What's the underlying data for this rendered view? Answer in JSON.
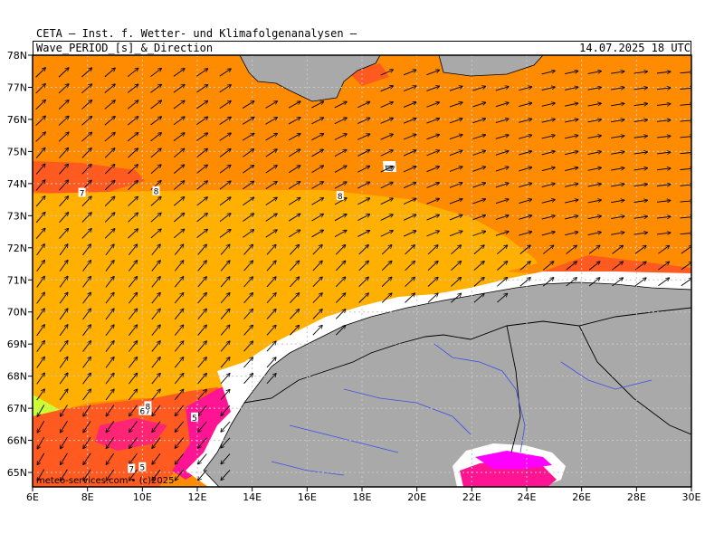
{
  "header": {
    "title": "CETA — Inst. f. Wetter- und Klimafolgenanalysen —",
    "product": "Wave_PERIOD_[s]_&_Direction",
    "valid_time": "14.07.2025 18 UTC"
  },
  "axes": {
    "lat_labels": [
      "78N",
      "77N",
      "76N",
      "75N",
      "74N",
      "73N",
      "72N",
      "71N",
      "70N",
      "69N",
      "68N",
      "67N",
      "66N",
      "65N"
    ],
    "lon_labels": [
      "6E",
      "8E",
      "10E",
      "12E",
      "14E",
      "16E",
      "18E",
      "20E",
      "22E",
      "24E",
      "26E",
      "28E",
      "30E"
    ],
    "lon_range": [
      6,
      30
    ],
    "lat_range": [
      64.55,
      78
    ],
    "grid": true
  },
  "contour_labels": [
    {
      "text": "7",
      "lon": 7.8,
      "lat": 73.7
    },
    {
      "text": "8",
      "lon": 10.5,
      "lat": 73.75
    },
    {
      "text": "8",
      "lon": 17.2,
      "lat": 73.6
    },
    {
      "text": "6",
      "lon": 10.0,
      "lat": 66.9
    },
    {
      "text": "7",
      "lon": 10.2,
      "lat": 66.9
    },
    {
      "text": "8",
      "lon": 10.2,
      "lat": 67.05
    },
    {
      "text": "5",
      "lon": 11.9,
      "lat": 66.7
    },
    {
      "text": "7",
      "lon": 9.6,
      "lat": 65.1
    },
    {
      "text": "5",
      "lon": 10.0,
      "lat": 65.15
    }
  ],
  "colors": {
    "orange": "#ff8c00",
    "amber": "#ffb000",
    "red_orange": "#ff5a1f",
    "magenta": "#ff1493",
    "violet": "#ff00ff",
    "yellow_green": "#ccff33",
    "land": "#a9a9a9",
    "rivers": "#3b50e6"
  },
  "credit": "meteo-services.com • (c)2025"
}
